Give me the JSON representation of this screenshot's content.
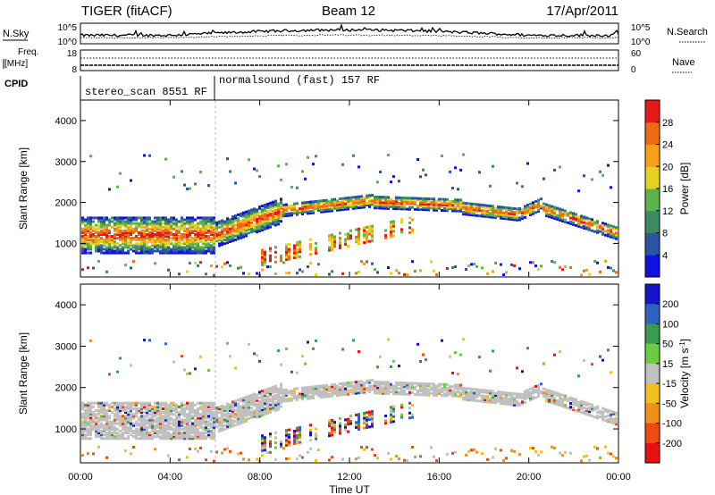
{
  "header": {
    "title": "TIGER (fitACF)",
    "beam": "Beam 12",
    "date": "17/Apr/2011"
  },
  "top_panels": {
    "nsky_label": "N.Sky",
    "nsky_ticks": [
      "10^5",
      "10^0"
    ],
    "nsearch_label": "N.Search",
    "nsearch_ticks": [
      "10^5",
      "10^0"
    ],
    "freq_label_1": "Freq.",
    "freq_label_2": "[MHz]",
    "freq_ticks": [
      "18",
      "8"
    ],
    "nave_label": "Nave",
    "nave_ticks": [
      "60",
      "0"
    ],
    "cpid_label": "CPID",
    "cpid_segments": [
      {
        "label": "stereo_scan 8551 RF",
        "start_hour": 0
      },
      {
        "label": "normalsound (fast) 157 RF",
        "start_hour": 6
      }
    ]
  },
  "chart_data": [
    {
      "type": "heatmap",
      "title": "",
      "ylabel": "Slant Range [km]",
      "xlabel": "",
      "ylim": [
        180,
        4500
      ],
      "yticks": [
        "1000",
        "2000",
        "3000",
        "4000"
      ],
      "colorbar_label": "Power [dB]",
      "colorbar_ticks": [
        "4",
        "8",
        "12",
        "16",
        "20",
        "24",
        "28"
      ],
      "colorbar_colors": [
        "#1010e0",
        "#2a54a8",
        "#3c8a60",
        "#5ab44a",
        "#e8d020",
        "#f5a018",
        "#f06a10",
        "#e81818"
      ],
      "colorbar_range": [
        0,
        30
      ]
    },
    {
      "type": "heatmap",
      "title": "",
      "ylabel": "Slant Range [km]",
      "xlabel": "Time UT",
      "ylim": [
        180,
        4500
      ],
      "yticks": [
        "1000",
        "2000",
        "3000",
        "4000"
      ],
      "xticks": [
        "00:00",
        "04:00",
        "08:00",
        "12:00",
        "16:00",
        "20:00",
        "00:00"
      ],
      "xlim_hours": [
        0,
        24
      ],
      "colorbar_label": "Velocity [m s^-1]",
      "colorbar_ticks": [
        "200",
        "100",
        "50",
        "15",
        "-15",
        "-50",
        "-100",
        "-200"
      ],
      "colorbar_colors": [
        "#1414cc",
        "#2a64c0",
        "#3a9a50",
        "#6ccc40",
        "#c0c0c0",
        "#f0c020",
        "#f09018",
        "#f04a10",
        "#e81010"
      ]
    }
  ]
}
